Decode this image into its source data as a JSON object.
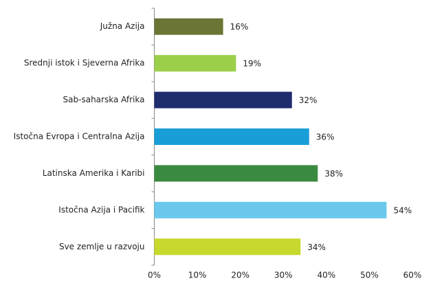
{
  "chart_data": {
    "type": "barh",
    "categories": [
      "Južna Azija",
      "Srednji istok i Sjeverna Afrika",
      "Sab-saharska Afrika",
      "Istočna Evropa i Centralna Azija",
      "Latinska Amerika i Karibi",
      "Istočna Azija i Pacifik",
      "Sve zemlje u razvoju"
    ],
    "values": [
      16,
      19,
      32,
      36,
      38,
      54,
      34
    ],
    "value_labels": [
      "16%",
      "19%",
      "32%",
      "36%",
      "38%",
      "54%",
      "34%"
    ],
    "colors": [
      "#6b7535",
      "#9bcf4a",
      "#1f2d6e",
      "#1a9ed8",
      "#3a8a40",
      "#6bc8ec",
      "#c7d92e"
    ],
    "xlim": [
      0,
      60
    ],
    "xticks": [
      {
        "value": 0,
        "label": "0%"
      },
      {
        "value": 10,
        "label": "10%"
      },
      {
        "value": 20,
        "label": "20%"
      },
      {
        "value": 30,
        "label": "30%"
      },
      {
        "value": 40,
        "label": "40%"
      },
      {
        "value": 50,
        "label": "50%"
      },
      {
        "value": 60,
        "label": "60%"
      }
    ],
    "grid": false
  }
}
